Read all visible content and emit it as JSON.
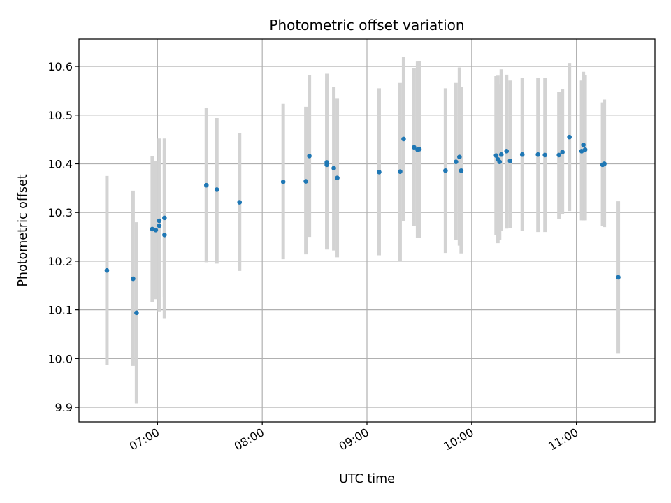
{
  "chart_data": {
    "type": "scatter",
    "title": "Photometric offset variation",
    "xlabel": "UTC time",
    "ylabel": "Photometric offset",
    "x_axis_type": "time",
    "xlim": [
      "06:15",
      "11:45"
    ],
    "ylim": [
      9.87,
      10.656
    ],
    "x_ticks": [
      "07:00",
      "08:00",
      "09:00",
      "10:00",
      "11:00"
    ],
    "y_ticks": [
      9.9,
      10.0,
      10.1,
      10.2,
      10.3,
      10.4,
      10.5,
      10.6
    ],
    "grid": true,
    "colors": {
      "point": "#1f77b4",
      "errorbar": "#d3d3d3",
      "grid": "#b0b0b0"
    },
    "series": [
      {
        "x": [
          "06:31",
          "06:46",
          "06:48",
          "06:57",
          "06:59",
          "07:01",
          "07:01",
          "07:04",
          "07:04",
          "07:28",
          "07:34",
          "07:47",
          "08:12",
          "08:25",
          "08:27",
          "08:37",
          "08:37",
          "08:41",
          "08:43",
          "09:07",
          "09:19",
          "09:21",
          "09:27",
          "09:29",
          "09:30",
          "09:45",
          "09:51",
          "09:53",
          "09:54",
          "10:14",
          "10:15",
          "10:16",
          "10:17",
          "10:20",
          "10:22",
          "10:29",
          "10:38",
          "10:42",
          "10:50",
          "10:52",
          "10:56",
          "11:03",
          "11:04",
          "11:05",
          "11:15",
          "11:16",
          "11:24"
        ],
        "y": [
          10.181,
          10.164,
          10.094,
          10.266,
          10.264,
          10.283,
          10.273,
          10.289,
          10.254,
          10.356,
          10.347,
          10.321,
          10.363,
          10.364,
          10.416,
          10.403,
          10.398,
          10.391,
          10.371,
          10.383,
          10.384,
          10.451,
          10.434,
          10.429,
          10.43,
          10.386,
          10.404,
          10.414,
          10.386,
          10.417,
          10.409,
          10.404,
          10.419,
          10.426,
          10.406,
          10.419,
          10.419,
          10.418,
          10.418,
          10.424,
          10.455,
          10.426,
          10.439,
          10.429,
          10.398,
          10.4,
          10.167
        ],
        "y_low": [
          9.987,
          9.985,
          9.908,
          10.116,
          10.122,
          10.097,
          10.103,
          10.127,
          10.083,
          10.198,
          10.195,
          10.18,
          10.204,
          10.214,
          10.25,
          10.224,
          10.225,
          10.222,
          10.208,
          10.212,
          10.201,
          10.283,
          10.273,
          10.248,
          10.248,
          10.217,
          10.243,
          10.232,
          10.216,
          10.254,
          10.237,
          10.244,
          10.262,
          10.267,
          10.268,
          10.262,
          10.26,
          10.26,
          10.287,
          10.296,
          10.303,
          10.284,
          10.284,
          10.284,
          10.272,
          10.27,
          10.01
        ],
        "y_high": [
          10.375,
          10.345,
          10.28,
          10.416,
          10.406,
          10.451,
          10.452,
          10.452,
          10.429,
          10.515,
          10.494,
          10.463,
          10.523,
          10.517,
          10.582,
          10.585,
          10.57,
          10.557,
          10.535,
          10.555,
          10.566,
          10.62,
          10.596,
          10.61,
          10.611,
          10.555,
          10.566,
          10.598,
          10.557,
          10.58,
          10.581,
          10.564,
          10.594,
          10.583,
          10.571,
          10.576,
          10.576,
          10.576,
          10.548,
          10.553,
          10.607,
          10.571,
          10.589,
          10.582,
          10.526,
          10.532,
          10.323
        ]
      }
    ]
  }
}
